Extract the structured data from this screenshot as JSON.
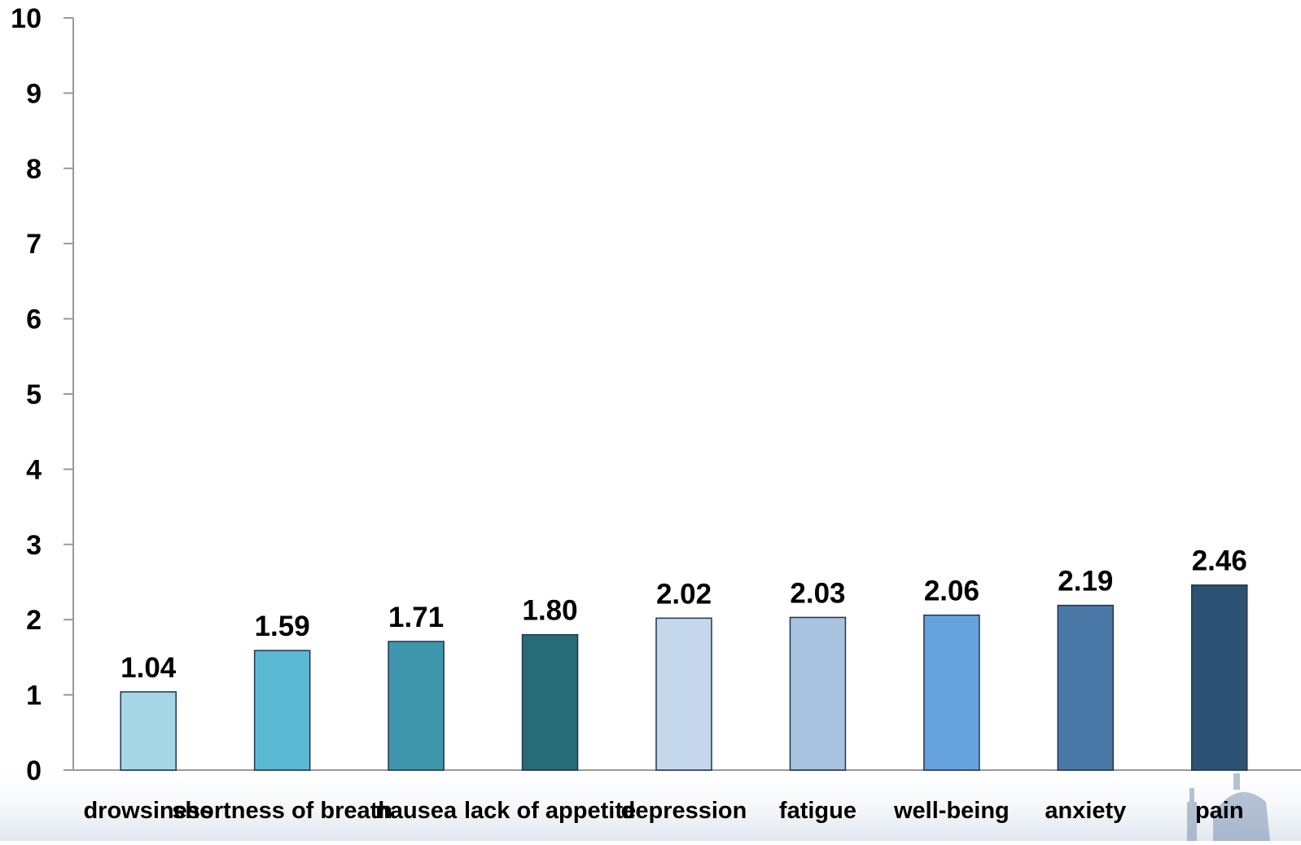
{
  "chart_data": {
    "type": "bar",
    "categories": [
      "drowsiness",
      "shortness of breath",
      "nausea",
      "lack of appetite",
      "depression",
      "fatigue",
      "well-being",
      "anxiety",
      "pain"
    ],
    "values": [
      1.04,
      1.59,
      1.71,
      1.8,
      2.02,
      2.03,
      2.06,
      2.19,
      2.46
    ],
    "data_labels": [
      "1.04",
      "1.59",
      "1.71",
      "1.80",
      "2.02",
      "2.03",
      "2.06",
      "2.19",
      "2.46"
    ],
    "bar_colors": [
      "#a5d6e5",
      "#5cb9d3",
      "#3f97ae",
      "#276b79",
      "#c5d7ea",
      "#a8c2df",
      "#66a3dd",
      "#4a78a7",
      "#2d5172"
    ],
    "yticks": [
      "0",
      "1",
      "2",
      "3",
      "4",
      "5",
      "6",
      "7",
      "8",
      "9",
      "10"
    ],
    "ylim": [
      0,
      10
    ],
    "title": "",
    "xlabel": "",
    "ylabel": "",
    "grid": false,
    "legend": "none",
    "axis_color": "#9a9a9a",
    "bar_edge_color": "#1f3550"
  }
}
